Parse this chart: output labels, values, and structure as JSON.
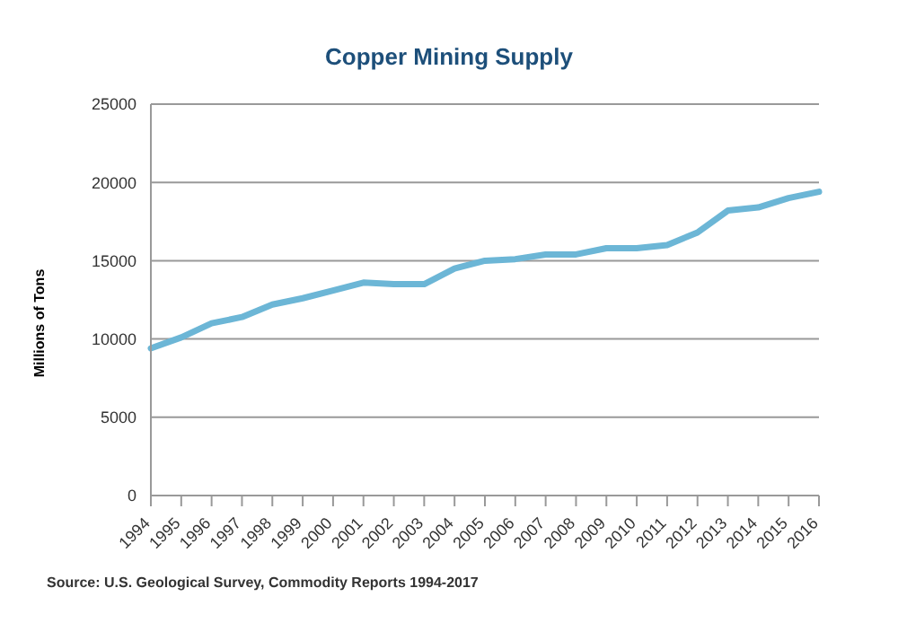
{
  "chart_data": {
    "type": "line",
    "title": "Copper Mining Supply",
    "ylabel": "Millions of Tons",
    "categories": [
      "1994",
      "1995",
      "1996",
      "1997",
      "1998",
      "1999",
      "2000",
      "2001",
      "2002",
      "2003",
      "2004",
      "2005",
      "2006",
      "2007",
      "2008",
      "2009",
      "2010",
      "2011",
      "2012",
      "2013",
      "2014",
      "2015",
      "2016"
    ],
    "series": [
      {
        "color": "#6cb6d6",
        "values": [
          9400,
          10100,
          11000,
          11400,
          12200,
          12600,
          13100,
          13600,
          13500,
          13500,
          14500,
          15000,
          15100,
          15400,
          15400,
          15800,
          15800,
          16000,
          16800,
          18200,
          18400,
          19000,
          19400
        ]
      }
    ],
    "ylim": [
      0,
      25000
    ],
    "yticks": [
      0,
      5000,
      10000,
      15000,
      20000,
      25000
    ],
    "grid": "y",
    "marker": "none",
    "line_style": "solid",
    "annotations": [
      "Source: U.S. Geological Survey, Commodity Reports 1994-2017"
    ]
  }
}
